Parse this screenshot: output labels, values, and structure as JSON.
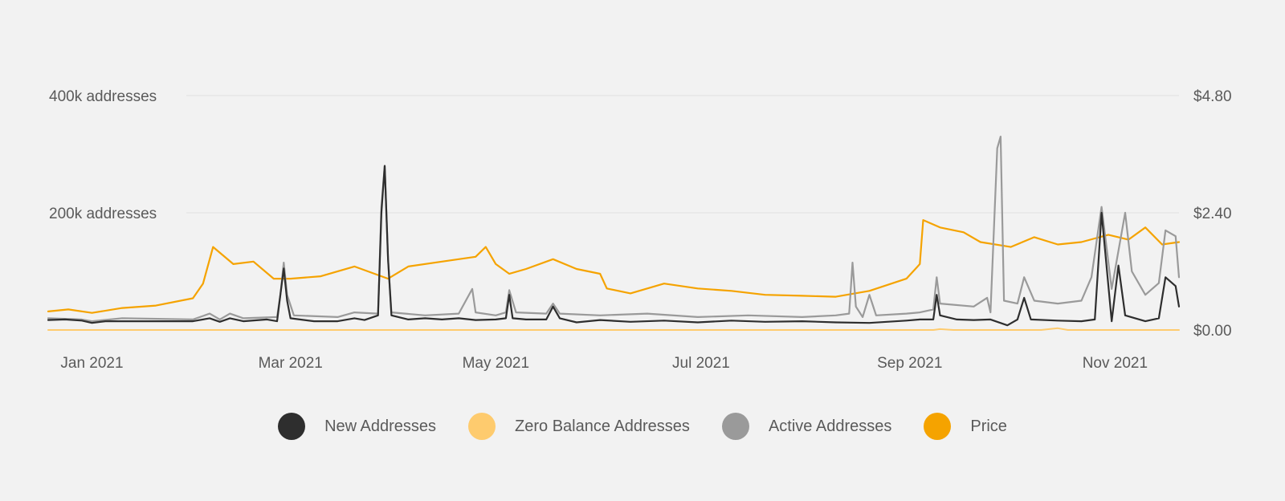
{
  "chart_data": {
    "type": "line",
    "x_ticks": [
      "Jan 2021",
      "Mar 2021",
      "May 2021",
      "Jul 2021",
      "Sep 2021",
      "Nov 2021"
    ],
    "x_tick_dates": [
      "2021-01-01",
      "2021-03-01",
      "2021-05-01",
      "2021-07-01",
      "2021-09-01",
      "2021-11-01"
    ],
    "xlim": [
      "2020-12-19",
      "2021-11-20"
    ],
    "y_left": {
      "ticks": [
        "400k addresses",
        "200k addresses"
      ],
      "tick_values": [
        400000,
        200000
      ],
      "ylim": [
        0,
        400000
      ]
    },
    "y_right": {
      "ticks": [
        "$4.80",
        "$2.40",
        "$0.00"
      ],
      "tick_values": [
        4.8,
        2.4,
        0
      ],
      "ylim": [
        0,
        4.8
      ]
    },
    "grid": "horizontal",
    "legend_position": "bottom-center",
    "series": [
      {
        "name": "New Addresses",
        "color": "#2e2e2e",
        "axis": "left",
        "points": [
          [
            "2020-12-19",
            17000
          ],
          [
            "2020-12-24",
            18000
          ],
          [
            "2020-12-29",
            16000
          ],
          [
            "2021-01-01",
            12000
          ],
          [
            "2021-01-05",
            15000
          ],
          [
            "2021-01-12",
            15000
          ],
          [
            "2021-01-22",
            15000
          ],
          [
            "2021-01-31",
            15000
          ],
          [
            "2021-02-05",
            20000
          ],
          [
            "2021-02-08",
            14000
          ],
          [
            "2021-02-11",
            20000
          ],
          [
            "2021-02-15",
            15000
          ],
          [
            "2021-02-22",
            18000
          ],
          [
            "2021-02-25",
            15000
          ],
          [
            "2021-02-26",
            60000
          ],
          [
            "2021-02-27",
            105000
          ],
          [
            "2021-02-28",
            50000
          ],
          [
            "2021-03-01",
            20000
          ],
          [
            "2021-03-08",
            15000
          ],
          [
            "2021-03-15",
            15000
          ],
          [
            "2021-03-20",
            20000
          ],
          [
            "2021-03-23",
            17000
          ],
          [
            "2021-03-27",
            25000
          ],
          [
            "2021-03-28",
            200000
          ],
          [
            "2021-03-29",
            280000
          ],
          [
            "2021-03-30",
            120000
          ],
          [
            "2021-03-31",
            25000
          ],
          [
            "2021-04-05",
            18000
          ],
          [
            "2021-04-10",
            20000
          ],
          [
            "2021-04-15",
            18000
          ],
          [
            "2021-04-20",
            20000
          ],
          [
            "2021-04-25",
            17000
          ],
          [
            "2021-05-01",
            18000
          ],
          [
            "2021-05-04",
            20000
          ],
          [
            "2021-05-05",
            60000
          ],
          [
            "2021-05-06",
            20000
          ],
          [
            "2021-05-10",
            18000
          ],
          [
            "2021-05-16",
            18000
          ],
          [
            "2021-05-18",
            40000
          ],
          [
            "2021-05-20",
            20000
          ],
          [
            "2021-05-25",
            13000
          ],
          [
            "2021-06-01",
            17000
          ],
          [
            "2021-06-10",
            14000
          ],
          [
            "2021-06-20",
            16000
          ],
          [
            "2021-06-30",
            13000
          ],
          [
            "2021-07-10",
            16000
          ],
          [
            "2021-07-20",
            14000
          ],
          [
            "2021-07-31",
            15000
          ],
          [
            "2021-08-10",
            13000
          ],
          [
            "2021-08-20",
            12000
          ],
          [
            "2021-08-31",
            16000
          ],
          [
            "2021-09-04",
            18000
          ],
          [
            "2021-09-08",
            18000
          ],
          [
            "2021-09-09",
            60000
          ],
          [
            "2021-09-10",
            25000
          ],
          [
            "2021-09-15",
            18000
          ],
          [
            "2021-09-20",
            17000
          ],
          [
            "2021-09-25",
            18000
          ],
          [
            "2021-09-30",
            8000
          ],
          [
            "2021-10-03",
            18000
          ],
          [
            "2021-10-05",
            55000
          ],
          [
            "2021-10-07",
            18000
          ],
          [
            "2021-10-15",
            16000
          ],
          [
            "2021-10-22",
            15000
          ],
          [
            "2021-10-26",
            18000
          ],
          [
            "2021-10-28",
            200000
          ],
          [
            "2021-10-31",
            15000
          ],
          [
            "2021-11-02",
            110000
          ],
          [
            "2021-11-04",
            25000
          ],
          [
            "2021-11-10",
            15000
          ],
          [
            "2021-11-14",
            20000
          ],
          [
            "2021-11-16",
            90000
          ],
          [
            "2021-11-19",
            75000
          ],
          [
            "2021-11-20",
            40000
          ]
        ]
      },
      {
        "name": "Zero Balance Addresses",
        "color": "#fecb6e",
        "axis": "left",
        "points": [
          [
            "2020-12-19",
            0
          ],
          [
            "2021-09-08",
            0
          ],
          [
            "2021-09-10",
            1500
          ],
          [
            "2021-09-14",
            0
          ],
          [
            "2021-10-10",
            0
          ],
          [
            "2021-10-15",
            3000
          ],
          [
            "2021-10-18",
            0
          ],
          [
            "2021-11-20",
            0
          ]
        ]
      },
      {
        "name": "Active Addresses",
        "color": "#9a9a9a",
        "axis": "left",
        "points": [
          [
            "2020-12-19",
            20000
          ],
          [
            "2020-12-29",
            18000
          ],
          [
            "2021-01-01",
            15000
          ],
          [
            "2021-01-10",
            20000
          ],
          [
            "2021-01-31",
            18000
          ],
          [
            "2021-02-05",
            28000
          ],
          [
            "2021-02-08",
            18000
          ],
          [
            "2021-02-11",
            28000
          ],
          [
            "2021-02-15",
            20000
          ],
          [
            "2021-02-25",
            22000
          ],
          [
            "2021-02-26",
            60000
          ],
          [
            "2021-02-27",
            115000
          ],
          [
            "2021-02-28",
            60000
          ],
          [
            "2021-03-02",
            25000
          ],
          [
            "2021-03-15",
            22000
          ],
          [
            "2021-03-20",
            30000
          ],
          [
            "2021-03-27",
            28000
          ],
          [
            "2021-03-28",
            210000
          ],
          [
            "2021-03-29",
            280000
          ],
          [
            "2021-03-30",
            120000
          ],
          [
            "2021-03-31",
            30000
          ],
          [
            "2021-04-10",
            25000
          ],
          [
            "2021-04-20",
            28000
          ],
          [
            "2021-04-24",
            70000
          ],
          [
            "2021-04-25",
            30000
          ],
          [
            "2021-05-01",
            25000
          ],
          [
            "2021-05-04",
            30000
          ],
          [
            "2021-05-05",
            68000
          ],
          [
            "2021-05-07",
            30000
          ],
          [
            "2021-05-16",
            28000
          ],
          [
            "2021-05-18",
            45000
          ],
          [
            "2021-05-20",
            28000
          ],
          [
            "2021-06-01",
            25000
          ],
          [
            "2021-06-15",
            28000
          ],
          [
            "2021-06-30",
            22000
          ],
          [
            "2021-07-15",
            25000
          ],
          [
            "2021-07-31",
            22000
          ],
          [
            "2021-08-10",
            25000
          ],
          [
            "2021-08-14",
            28000
          ],
          [
            "2021-08-15",
            115000
          ],
          [
            "2021-08-16",
            40000
          ],
          [
            "2021-08-18",
            22000
          ],
          [
            "2021-08-20",
            60000
          ],
          [
            "2021-08-22",
            25000
          ],
          [
            "2021-08-31",
            28000
          ],
          [
            "2021-09-04",
            30000
          ],
          [
            "2021-09-08",
            35000
          ],
          [
            "2021-09-09",
            90000
          ],
          [
            "2021-09-10",
            45000
          ],
          [
            "2021-09-20",
            40000
          ],
          [
            "2021-09-24",
            55000
          ],
          [
            "2021-09-25",
            30000
          ],
          [
            "2021-09-27",
            310000
          ],
          [
            "2021-09-28",
            330000
          ],
          [
            "2021-09-29",
            50000
          ],
          [
            "2021-10-03",
            45000
          ],
          [
            "2021-10-05",
            90000
          ],
          [
            "2021-10-08",
            50000
          ],
          [
            "2021-10-15",
            45000
          ],
          [
            "2021-10-22",
            50000
          ],
          [
            "2021-10-25",
            90000
          ],
          [
            "2021-10-28",
            210000
          ],
          [
            "2021-10-31",
            70000
          ],
          [
            "2021-11-04",
            200000
          ],
          [
            "2021-11-06",
            100000
          ],
          [
            "2021-11-10",
            60000
          ],
          [
            "2021-11-14",
            80000
          ],
          [
            "2021-11-16",
            170000
          ],
          [
            "2021-11-19",
            160000
          ],
          [
            "2021-11-20",
            90000
          ]
        ]
      },
      {
        "name": "Price",
        "color": "#f5a300",
        "axis": "right",
        "points": [
          [
            "2020-12-19",
            0.38
          ],
          [
            "2020-12-25",
            0.42
          ],
          [
            "2021-01-01",
            0.35
          ],
          [
            "2021-01-10",
            0.45
          ],
          [
            "2021-01-20",
            0.5
          ],
          [
            "2021-01-31",
            0.65
          ],
          [
            "2021-02-03",
            0.95
          ],
          [
            "2021-02-06",
            1.7
          ],
          [
            "2021-02-12",
            1.35
          ],
          [
            "2021-02-18",
            1.4
          ],
          [
            "2021-02-24",
            1.05
          ],
          [
            "2021-03-01",
            1.05
          ],
          [
            "2021-03-10",
            1.1
          ],
          [
            "2021-03-20",
            1.3
          ],
          [
            "2021-03-30",
            1.05
          ],
          [
            "2021-04-05",
            1.3
          ],
          [
            "2021-04-15",
            1.4
          ],
          [
            "2021-04-25",
            1.5
          ],
          [
            "2021-04-28",
            1.7
          ],
          [
            "2021-05-01",
            1.35
          ],
          [
            "2021-05-05",
            1.15
          ],
          [
            "2021-05-10",
            1.25
          ],
          [
            "2021-05-18",
            1.45
          ],
          [
            "2021-05-25",
            1.25
          ],
          [
            "2021-06-01",
            1.15
          ],
          [
            "2021-06-03",
            0.85
          ],
          [
            "2021-06-10",
            0.75
          ],
          [
            "2021-06-20",
            0.95
          ],
          [
            "2021-06-30",
            0.85
          ],
          [
            "2021-07-10",
            0.8
          ],
          [
            "2021-07-20",
            0.72
          ],
          [
            "2021-07-31",
            0.7
          ],
          [
            "2021-08-10",
            0.68
          ],
          [
            "2021-08-20",
            0.8
          ],
          [
            "2021-08-31",
            1.05
          ],
          [
            "2021-09-04",
            1.35
          ],
          [
            "2021-09-05",
            2.25
          ],
          [
            "2021-09-10",
            2.1
          ],
          [
            "2021-09-17",
            2.0
          ],
          [
            "2021-09-22",
            1.8
          ],
          [
            "2021-10-01",
            1.7
          ],
          [
            "2021-10-08",
            1.9
          ],
          [
            "2021-10-15",
            1.75
          ],
          [
            "2021-10-22",
            1.8
          ],
          [
            "2021-10-30",
            1.95
          ],
          [
            "2021-11-05",
            1.85
          ],
          [
            "2021-11-10",
            2.1
          ],
          [
            "2021-11-15",
            1.75
          ],
          [
            "2021-11-20",
            1.8
          ]
        ]
      }
    ]
  },
  "legend": [
    {
      "label": "New Addresses",
      "color": "#2e2e2e"
    },
    {
      "label": "Zero Balance Addresses",
      "color": "#fecb6e"
    },
    {
      "label": "Active Addresses",
      "color": "#9a9a9a"
    },
    {
      "label": "Price",
      "color": "#f5a300"
    }
  ]
}
